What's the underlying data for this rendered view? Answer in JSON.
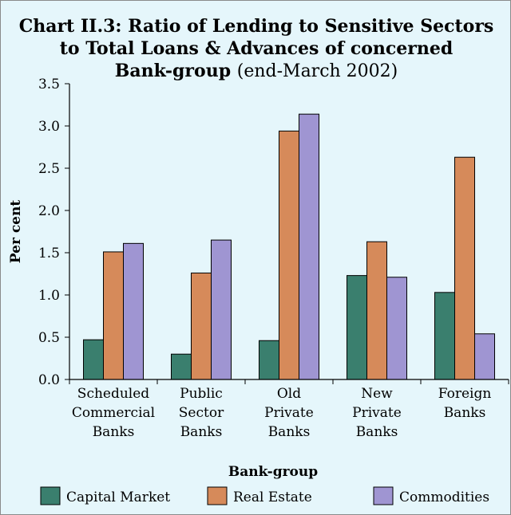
{
  "chart_data": {
    "type": "bar",
    "title_lines": [
      "Chart II.3: Ratio of Lending to Sensitive Sectors",
      "to Total Loans & Advances of concerned"
    ],
    "title_line3_bold": "Bank-group",
    "title_line3_normal": "(end-March 2002)",
    "xlabel": "Bank-group",
    "ylabel": "Per cent",
    "ylim": [
      0,
      3.5
    ],
    "yticks": [
      "0.0",
      "0.5",
      "1.0",
      "1.5",
      "2.0",
      "2.5",
      "3.0",
      "3.5"
    ],
    "categories": [
      [
        "Scheduled",
        "Commercial",
        "Banks"
      ],
      [
        "Public",
        "Sector",
        "Banks"
      ],
      [
        "Old",
        "Private",
        "Banks"
      ],
      [
        "New",
        "Private",
        "Banks"
      ],
      [
        "Foreign",
        "Banks"
      ]
    ],
    "series": [
      {
        "name": "Capital Market",
        "color": "#3a7f6e",
        "values": [
          0.47,
          0.3,
          0.46,
          1.23,
          1.03
        ]
      },
      {
        "name": "Real Estate",
        "color": "#d68a5a",
        "values": [
          1.51,
          1.26,
          2.94,
          1.63,
          2.63
        ]
      },
      {
        "name": "Commodities",
        "color": "#9f95d2",
        "values": [
          1.61,
          1.65,
          3.14,
          1.21,
          0.54
        ]
      }
    ],
    "grid": false,
    "legend_position": "bottom"
  }
}
